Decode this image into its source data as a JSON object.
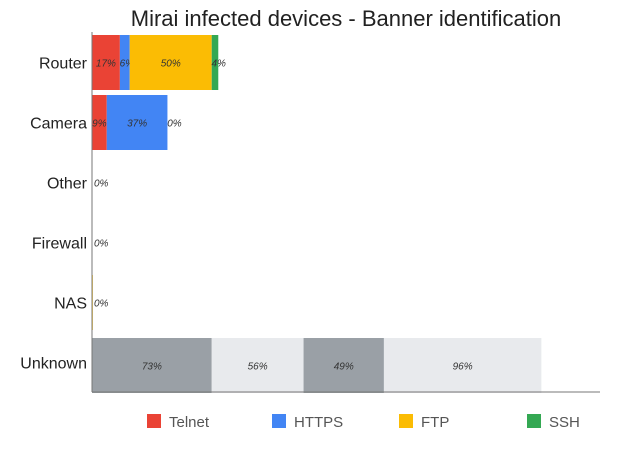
{
  "chart_data": {
    "type": "bar",
    "orientation": "horizontal",
    "stacked": true,
    "title": "Mirai infected devices - Banner identification",
    "xlabel": "",
    "ylabel": "",
    "categories": [
      "Router",
      "Camera",
      "Other",
      "Firewall",
      "NAS",
      "Unknown"
    ],
    "series": [
      {
        "name": "Telnet",
        "color": "#ea4335",
        "values": [
          17,
          9,
          0,
          0,
          0,
          null
        ],
        "labels": [
          "17%",
          "9%",
          "",
          "",
          "",
          ""
        ]
      },
      {
        "name": "HTTPS",
        "color": "#4285f4",
        "values": [
          6,
          37,
          0,
          0,
          0,
          null
        ],
        "labels": [
          "6%",
          "37%",
          "",
          "",
          "",
          ""
        ]
      },
      {
        "name": "FTP",
        "color": "#fbbc04",
        "values": [
          50,
          0,
          0,
          0,
          0.5,
          null
        ],
        "labels": [
          "50%",
          "0%",
          "",
          "",
          "",
          ""
        ]
      },
      {
        "name": "SSH",
        "color": "#34a853",
        "values": [
          4,
          0,
          0,
          0,
          0,
          null
        ],
        "labels": [
          "4%",
          "",
          "",
          "",
          "",
          ""
        ]
      }
    ],
    "zero_labels": {
      "Other": "0%",
      "Firewall": "0%",
      "NAS": "0%"
    },
    "unknown_segments": [
      {
        "value": 73,
        "label": "73%",
        "color": "#9aa0a6"
      },
      {
        "value": 56,
        "label": "56%",
        "color": "#e8eaed"
      },
      {
        "value": 49,
        "label": "49%",
        "color": "#9aa0a6"
      },
      {
        "value": 96,
        "label": "96%",
        "color": "#e8eaed"
      }
    ],
    "xlim": [
      0,
      100
    ],
    "legend_position": "bottom"
  }
}
